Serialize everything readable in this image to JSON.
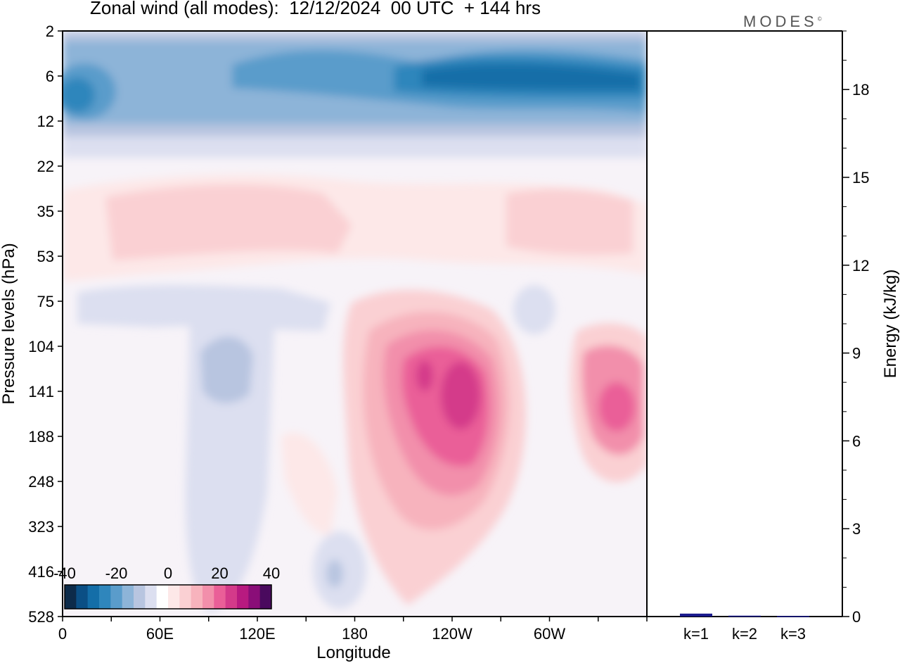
{
  "title": "Zonal wind (all modes):  12/12/2024  00 UTC  + 144 hrs",
  "logo": "MODES",
  "logo_mark": "©",
  "chart_data": [
    {
      "type": "heatmap",
      "variable": "Zonal wind",
      "xlabel": "Longitude",
      "ylabel": "Pressure levels (hPa)",
      "x_ticks": [
        "0",
        "60E",
        "120E",
        "180",
        "120W",
        "60W"
      ],
      "y_ticks": [
        "2",
        "6",
        "12",
        "22",
        "35",
        "53",
        "75",
        "104",
        "141",
        "188",
        "248",
        "323",
        "416",
        "528"
      ],
      "colorbar": {
        "tick_labels": [
          "-40",
          "-20",
          "0",
          "20",
          "40"
        ],
        "range": [
          -40,
          40
        ],
        "colors": [
          "#0d2b4a",
          "#0b4f85",
          "#146ea8",
          "#2f86bc",
          "#5a9ccb",
          "#8db4d8",
          "#b8c5e0",
          "#dcdff0",
          "#ffffff",
          "#fde8e8",
          "#fad0d3",
          "#f7b3bd",
          "#f28fab",
          "#ea5f98",
          "#d43a8a",
          "#b81a80",
          "#8a0e78",
          "#4a0a5e"
        ]
      },
      "features": [
        {
          "description": "easterly band",
          "lon_range": [
            0,
            360
          ],
          "p_range": [
            2,
            16
          ],
          "peak": -30
        },
        {
          "description": "westerly jet core",
          "lon_range": [
            195,
            265
          ],
          "p_range": [
            85,
            240
          ],
          "peak": 30
        },
        {
          "description": "westerly jet core",
          "lon_range": [
            320,
            355
          ],
          "p_range": [
            100,
            210
          ],
          "peak": 22
        },
        {
          "description": "weak easterlies",
          "lon_range": [
            40,
            150
          ],
          "p_range": [
            70,
            528
          ],
          "peak": -8
        }
      ]
    },
    {
      "type": "bar",
      "ylabel": "Energy (kJ/kg)",
      "categories": [
        "k=1",
        "k=2",
        "k=3"
      ],
      "values": [
        0.1,
        0.03,
        0.02
      ],
      "y_ticks": [
        "0",
        "3",
        "6",
        "9",
        "12",
        "15",
        "18"
      ],
      "ylim": [
        0,
        20
      ],
      "bar_color": "#1a1a8c"
    }
  ]
}
